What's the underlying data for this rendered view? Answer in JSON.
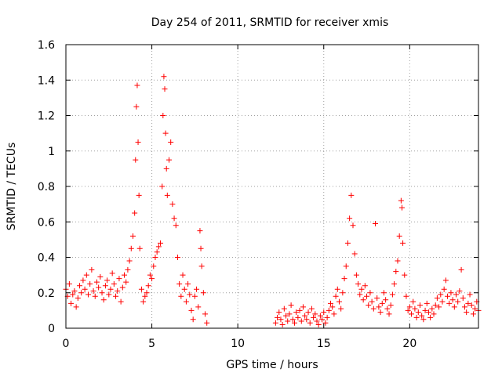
{
  "chart_data": {
    "type": "scatter",
    "title": "Day 254 of 2011, SRMTID for receiver xmis",
    "xlabel": "GPS time / hours",
    "ylabel": "SRMTID / TECUs",
    "xlim": [
      0,
      24
    ],
    "ylim": [
      0,
      1.6
    ],
    "xticks": [
      0,
      5,
      10,
      15,
      20
    ],
    "xtick_labels": [
      "0",
      "5",
      "10",
      "15",
      "20"
    ],
    "yticks": [
      0,
      0.2,
      0.4,
      0.6,
      0.8,
      1,
      1.2,
      1.4,
      1.6
    ],
    "ytick_labels": [
      "0",
      "0.2",
      "0.4",
      "0.6",
      "0.8",
      "1",
      "1.2",
      "1.4",
      "1.6"
    ],
    "grid": true,
    "marker": "+",
    "color": "#ff0000",
    "series": [
      {
        "name": "SRMTID",
        "points": [
          [
            0.0,
            0.22
          ],
          [
            0.1,
            0.18
          ],
          [
            0.2,
            0.25
          ],
          [
            0.3,
            0.14
          ],
          [
            0.4,
            0.19
          ],
          [
            0.5,
            0.21
          ],
          [
            0.6,
            0.12
          ],
          [
            0.7,
            0.17
          ],
          [
            0.8,
            0.24
          ],
          [
            0.9,
            0.2
          ],
          [
            1.0,
            0.27
          ],
          [
            1.1,
            0.22
          ],
          [
            1.2,
            0.3
          ],
          [
            1.3,
            0.19
          ],
          [
            1.4,
            0.25
          ],
          [
            1.5,
            0.33
          ],
          [
            1.6,
            0.21
          ],
          [
            1.7,
            0.18
          ],
          [
            1.8,
            0.26
          ],
          [
            1.9,
            0.23
          ],
          [
            2.0,
            0.29
          ],
          [
            2.1,
            0.2
          ],
          [
            2.2,
            0.16
          ],
          [
            2.3,
            0.24
          ],
          [
            2.4,
            0.27
          ],
          [
            2.5,
            0.19
          ],
          [
            2.6,
            0.22
          ],
          [
            2.7,
            0.31
          ],
          [
            2.8,
            0.25
          ],
          [
            2.9,
            0.18
          ],
          [
            3.0,
            0.21
          ],
          [
            3.1,
            0.28
          ],
          [
            3.2,
            0.15
          ],
          [
            3.3,
            0.23
          ],
          [
            3.4,
            0.3
          ],
          [
            3.5,
            0.26
          ],
          [
            3.6,
            0.33
          ],
          [
            3.7,
            0.38
          ],
          [
            3.8,
            0.45
          ],
          [
            3.9,
            0.52
          ],
          [
            4.0,
            0.65
          ],
          [
            4.05,
            0.95
          ],
          [
            4.1,
            1.25
          ],
          [
            4.15,
            1.37
          ],
          [
            4.2,
            1.05
          ],
          [
            4.25,
            0.75
          ],
          [
            4.3,
            0.45
          ],
          [
            4.4,
            0.22
          ],
          [
            4.5,
            0.15
          ],
          [
            4.6,
            0.18
          ],
          [
            4.7,
            0.2
          ],
          [
            4.8,
            0.24
          ],
          [
            4.9,
            0.3
          ],
          [
            5.0,
            0.28
          ],
          [
            5.1,
            0.35
          ],
          [
            5.2,
            0.4
          ],
          [
            5.3,
            0.43
          ],
          [
            5.4,
            0.46
          ],
          [
            5.5,
            0.48
          ],
          [
            5.6,
            0.8
          ],
          [
            5.65,
            1.2
          ],
          [
            5.7,
            1.42
          ],
          [
            5.75,
            1.35
          ],
          [
            5.8,
            1.1
          ],
          [
            5.85,
            0.9
          ],
          [
            5.9,
            0.75
          ],
          [
            6.0,
            0.95
          ],
          [
            6.1,
            1.05
          ],
          [
            6.2,
            0.7
          ],
          [
            6.3,
            0.62
          ],
          [
            6.4,
            0.58
          ],
          [
            6.5,
            0.4
          ],
          [
            6.6,
            0.25
          ],
          [
            6.7,
            0.18
          ],
          [
            6.8,
            0.3
          ],
          [
            6.9,
            0.22
          ],
          [
            7.0,
            0.15
          ],
          [
            7.1,
            0.25
          ],
          [
            7.2,
            0.19
          ],
          [
            7.3,
            0.1
          ],
          [
            7.4,
            0.05
          ],
          [
            7.5,
            0.18
          ],
          [
            7.6,
            0.22
          ],
          [
            7.7,
            0.12
          ],
          [
            7.8,
            0.55
          ],
          [
            7.85,
            0.45
          ],
          [
            7.9,
            0.35
          ],
          [
            8.0,
            0.2
          ],
          [
            8.1,
            0.08
          ],
          [
            8.2,
            0.03
          ],
          [
            12.2,
            0.03
          ],
          [
            12.3,
            0.06
          ],
          [
            12.4,
            0.09
          ],
          [
            12.5,
            0.05
          ],
          [
            12.6,
            0.02
          ],
          [
            12.7,
            0.11
          ],
          [
            12.8,
            0.07
          ],
          [
            12.9,
            0.04
          ],
          [
            13.0,
            0.08
          ],
          [
            13.1,
            0.13
          ],
          [
            13.2,
            0.05
          ],
          [
            13.3,
            0.03
          ],
          [
            13.4,
            0.09
          ],
          [
            13.5,
            0.06
          ],
          [
            13.6,
            0.1
          ],
          [
            13.7,
            0.04
          ],
          [
            13.8,
            0.12
          ],
          [
            13.9,
            0.07
          ],
          [
            14.0,
            0.05
          ],
          [
            14.1,
            0.09
          ],
          [
            14.2,
            0.03
          ],
          [
            14.3,
            0.11
          ],
          [
            14.4,
            0.06
          ],
          [
            14.5,
            0.08
          ],
          [
            14.6,
            0.04
          ],
          [
            14.7,
            0.02
          ],
          [
            14.8,
            0.07
          ],
          [
            14.9,
            0.05
          ],
          [
            15.0,
            0.09
          ],
          [
            15.1,
            0.03
          ],
          [
            15.2,
            0.06
          ],
          [
            15.3,
            0.1
          ],
          [
            15.4,
            0.14
          ],
          [
            15.5,
            0.12
          ],
          [
            15.6,
            0.08
          ],
          [
            15.7,
            0.18
          ],
          [
            15.8,
            0.22
          ],
          [
            15.9,
            0.15
          ],
          [
            16.0,
            0.11
          ],
          [
            16.1,
            0.2
          ],
          [
            16.2,
            0.28
          ],
          [
            16.3,
            0.35
          ],
          [
            16.4,
            0.48
          ],
          [
            16.5,
            0.62
          ],
          [
            16.6,
            0.75
          ],
          [
            16.7,
            0.58
          ],
          [
            16.8,
            0.42
          ],
          [
            16.9,
            0.3
          ],
          [
            17.0,
            0.25
          ],
          [
            17.1,
            0.19
          ],
          [
            17.2,
            0.22
          ],
          [
            17.3,
            0.16
          ],
          [
            17.4,
            0.24
          ],
          [
            17.5,
            0.18
          ],
          [
            17.6,
            0.13
          ],
          [
            17.7,
            0.2
          ],
          [
            17.8,
            0.15
          ],
          [
            17.9,
            0.11
          ],
          [
            18.0,
            0.59
          ],
          [
            18.1,
            0.17
          ],
          [
            18.2,
            0.12
          ],
          [
            18.3,
            0.09
          ],
          [
            18.4,
            0.14
          ],
          [
            18.5,
            0.2
          ],
          [
            18.6,
            0.16
          ],
          [
            18.7,
            0.11
          ],
          [
            18.8,
            0.08
          ],
          [
            18.9,
            0.13
          ],
          [
            19.0,
            0.19
          ],
          [
            19.1,
            0.25
          ],
          [
            19.2,
            0.32
          ],
          [
            19.3,
            0.38
          ],
          [
            19.4,
            0.52
          ],
          [
            19.5,
            0.72
          ],
          [
            19.55,
            0.68
          ],
          [
            19.6,
            0.48
          ],
          [
            19.7,
            0.3
          ],
          [
            19.8,
            0.18
          ],
          [
            19.9,
            0.1
          ],
          [
            20.0,
            0.12
          ],
          [
            20.1,
            0.08
          ],
          [
            20.2,
            0.15
          ],
          [
            20.3,
            0.11
          ],
          [
            20.4,
            0.06
          ],
          [
            20.5,
            0.09
          ],
          [
            20.6,
            0.13
          ],
          [
            20.7,
            0.07
          ],
          [
            20.8,
            0.05
          ],
          [
            20.9,
            0.1
          ],
          [
            21.0,
            0.14
          ],
          [
            21.1,
            0.09
          ],
          [
            21.2,
            0.06
          ],
          [
            21.3,
            0.11
          ],
          [
            21.4,
            0.08
          ],
          [
            21.5,
            0.13
          ],
          [
            21.6,
            0.17
          ],
          [
            21.7,
            0.12
          ],
          [
            21.8,
            0.19
          ],
          [
            21.9,
            0.15
          ],
          [
            22.0,
            0.22
          ],
          [
            22.1,
            0.27
          ],
          [
            22.2,
            0.18
          ],
          [
            22.3,
            0.14
          ],
          [
            22.4,
            0.2
          ],
          [
            22.5,
            0.16
          ],
          [
            22.6,
            0.12
          ],
          [
            22.7,
            0.19
          ],
          [
            22.8,
            0.15
          ],
          [
            22.9,
            0.21
          ],
          [
            23.0,
            0.33
          ],
          [
            23.1,
            0.17
          ],
          [
            23.2,
            0.12
          ],
          [
            23.3,
            0.09
          ],
          [
            23.4,
            0.14
          ],
          [
            23.5,
            0.19
          ],
          [
            23.6,
            0.13
          ],
          [
            23.7,
            0.08
          ],
          [
            23.8,
            0.11
          ],
          [
            23.9,
            0.15
          ],
          [
            24.0,
            0.1
          ]
        ]
      }
    ]
  }
}
